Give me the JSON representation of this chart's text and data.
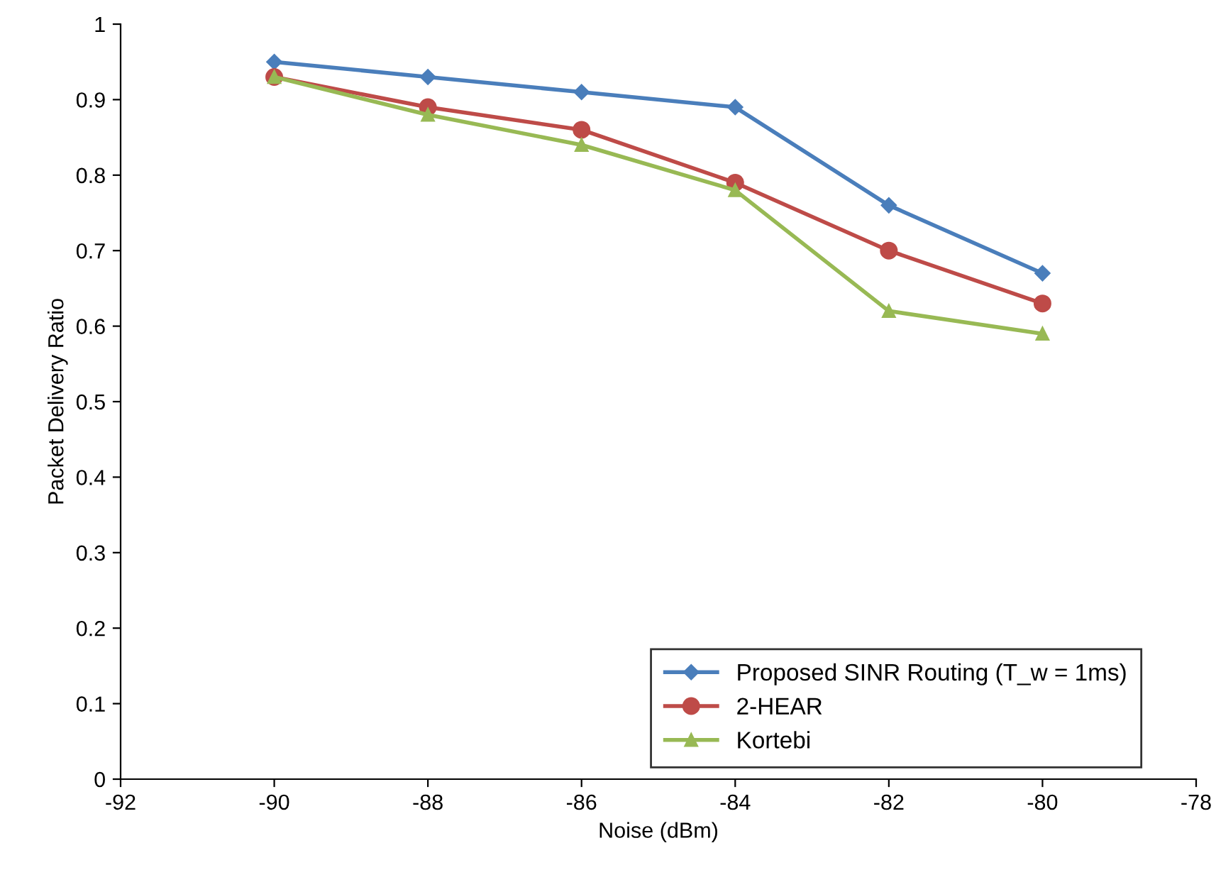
{
  "chart_data": {
    "type": "line",
    "xlabel": "Noise (dBm)",
    "ylabel": "Packet Delivery Ratio",
    "x": [
      -90,
      -88,
      -86,
      -84,
      -82,
      -80
    ],
    "series": [
      {
        "name": "Proposed SINR Routing (T_w = 1ms)",
        "color": "#4a7ebb",
        "marker": "diamond",
        "values": [
          0.95,
          0.93,
          0.91,
          0.89,
          0.76,
          0.67
        ]
      },
      {
        "name": "2-HEAR",
        "color": "#be4b48",
        "marker": "circle",
        "values": [
          0.93,
          0.89,
          0.86,
          0.79,
          0.7,
          0.63
        ]
      },
      {
        "name": "Kortebi",
        "color": "#98b954",
        "marker": "triangle",
        "values": [
          0.93,
          0.88,
          0.84,
          0.78,
          0.62,
          0.59
        ]
      }
    ],
    "xlim": [
      -92,
      -78
    ],
    "xticks": [
      -92,
      -90,
      -88,
      -86,
      -84,
      -82,
      -80,
      -78
    ],
    "ylim": [
      0,
      1
    ],
    "yticks": [
      0,
      0.1,
      0.2,
      0.3,
      0.4,
      0.5,
      0.6,
      0.7,
      0.8,
      0.9,
      1
    ],
    "grid": false,
    "legend": "bottom right",
    "line_style": "solid"
  }
}
